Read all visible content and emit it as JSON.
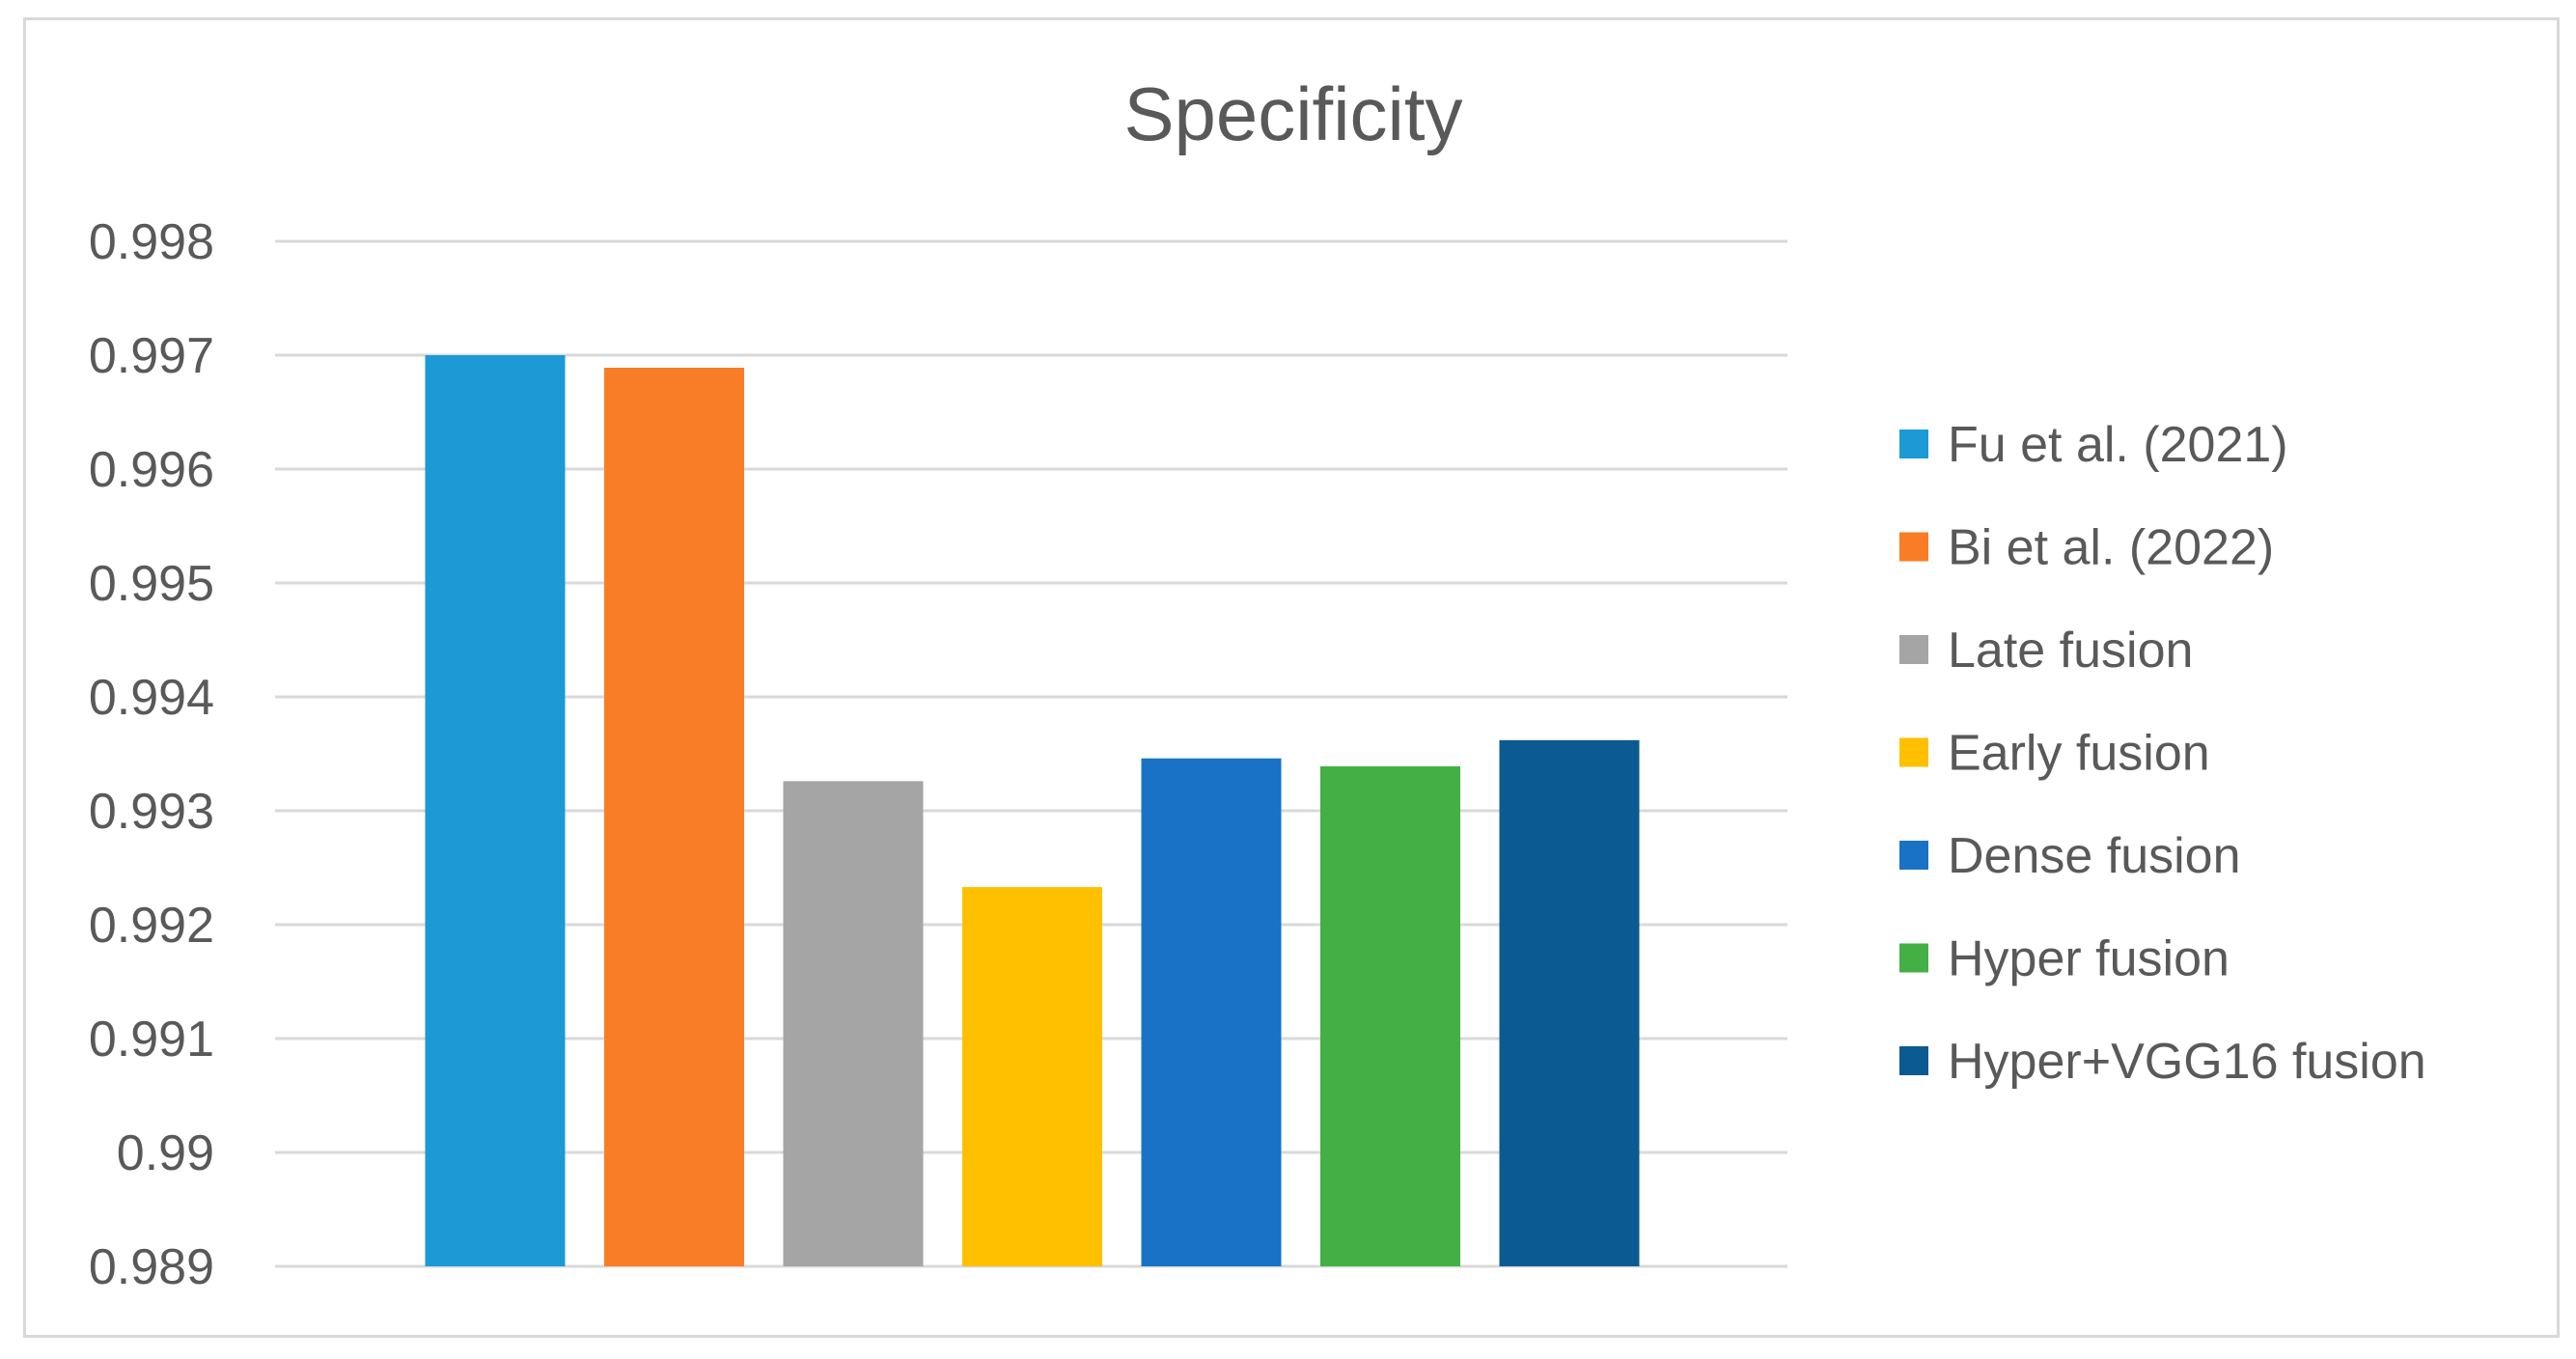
{
  "chart_data": {
    "type": "bar",
    "title": "Specificity",
    "xlabel": "",
    "ylabel": "",
    "ylim": [
      0.989,
      0.998
    ],
    "yticks": [
      0.998,
      0.997,
      0.996,
      0.995,
      0.994,
      0.993,
      0.992,
      0.991,
      0.99,
      0.989
    ],
    "ytick_labels": [
      "0.998",
      "0.997",
      "0.996",
      "0.995",
      "0.994",
      "0.993",
      "0.992",
      "0.991",
      "0.99",
      "0.989"
    ],
    "grid": true,
    "legend_position": "right",
    "series": [
      {
        "name": "Fu et al. (2021)",
        "value": 0.997,
        "color": "#1b9ad6"
      },
      {
        "name": "Bi et al. (2022)",
        "value": 0.99689,
        "color": "#f97d27"
      },
      {
        "name": "Late fusion",
        "value": 0.99326,
        "color": "#a5a5a5"
      },
      {
        "name": "Early fusion",
        "value": 0.99233,
        "color": "#ffc000"
      },
      {
        "name": "Dense fusion",
        "value": 0.99346,
        "color": "#1a72c7"
      },
      {
        "name": "Hyper fusion",
        "value": 0.99339,
        "color": "#44af44"
      },
      {
        "name": "Hyper+VGG16 fusion",
        "value": 0.99362,
        "color": "#0b5a91"
      }
    ]
  }
}
